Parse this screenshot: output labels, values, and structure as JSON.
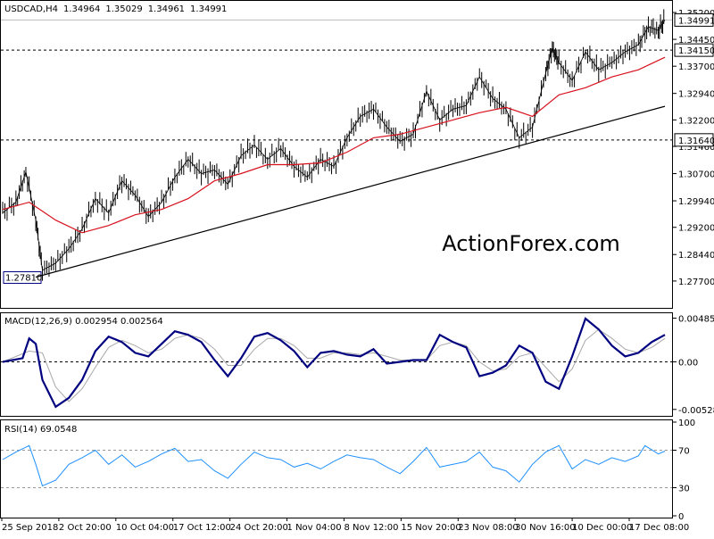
{
  "chart_data": {
    "type": "line",
    "symbol": "USDCAD",
    "timeframe": "H4",
    "ohlc_header": {
      "open": "1.34964",
      "high": "1.35029",
      "low": "1.34961",
      "close": "1.34991"
    },
    "watermark": "ActionForex.com",
    "x_labels": [
      "25 Sep 2018",
      "2 Oct 20:00",
      "10 Oct 04:00",
      "17 Oct 12:00",
      "24 Oct 20:00",
      "1 Nov 04:00",
      "8 Nov 12:00",
      "15 Nov 20:00",
      "23 Nov 08:00",
      "30 Nov 16:00",
      "10 Dec 00:00",
      "17 Dec 08:00"
    ],
    "price_panel": {
      "ylim": [
        1.27,
        1.352
      ],
      "y_ticks": [
        "1.35200",
        "1.34450",
        "1.33700",
        "1.32940",
        "1.32200",
        "1.31460",
        "1.30700",
        "1.29940",
        "1.29200",
        "1.28440",
        "1.27700"
      ],
      "tick_values": [
        1.352,
        1.3445,
        1.337,
        1.3294,
        1.322,
        1.3146,
        1.307,
        1.2994,
        1.292,
        1.2844,
        1.277
      ],
      "current_price": {
        "label": "1.34991",
        "value": 1.34991
      },
      "levels": [
        {
          "label": "1.34150",
          "value": 1.3415
        },
        {
          "label": "1.31640",
          "value": 1.3164
        }
      ],
      "low_marker": {
        "label": "1.27810",
        "value": 1.2781
      },
      "trendline": {
        "x": [
          0.05,
          1.0
        ],
        "y": [
          1.2781,
          1.3258
        ]
      },
      "price_series": [
        {
          "x": 0.0,
          "y": 1.296
        },
        {
          "x": 0.02,
          "y": 1.299
        },
        {
          "x": 0.035,
          "y": 1.3075
        },
        {
          "x": 0.05,
          "y": 1.294
        },
        {
          "x": 0.06,
          "y": 1.28
        },
        {
          "x": 0.08,
          "y": 1.282
        },
        {
          "x": 0.1,
          "y": 1.286
        },
        {
          "x": 0.12,
          "y": 1.2915
        },
        {
          "x": 0.14,
          "y": 1.3
        },
        {
          "x": 0.16,
          "y": 1.296
        },
        {
          "x": 0.18,
          "y": 1.305
        },
        {
          "x": 0.2,
          "y": 1.301
        },
        {
          "x": 0.22,
          "y": 1.295
        },
        {
          "x": 0.24,
          "y": 1.299
        },
        {
          "x": 0.26,
          "y": 1.306
        },
        {
          "x": 0.28,
          "y": 1.311
        },
        {
          "x": 0.3,
          "y": 1.307
        },
        {
          "x": 0.32,
          "y": 1.308
        },
        {
          "x": 0.34,
          "y": 1.304
        },
        {
          "x": 0.36,
          "y": 1.312
        },
        {
          "x": 0.38,
          "y": 1.315
        },
        {
          "x": 0.4,
          "y": 1.311
        },
        {
          "x": 0.42,
          "y": 1.314
        },
        {
          "x": 0.44,
          "y": 1.309
        },
        {
          "x": 0.46,
          "y": 1.306
        },
        {
          "x": 0.48,
          "y": 1.311
        },
        {
          "x": 0.5,
          "y": 1.309
        },
        {
          "x": 0.52,
          "y": 1.317
        },
        {
          "x": 0.54,
          "y": 1.323
        },
        {
          "x": 0.56,
          "y": 1.325
        },
        {
          "x": 0.58,
          "y": 1.32
        },
        {
          "x": 0.6,
          "y": 1.316
        },
        {
          "x": 0.62,
          "y": 1.318
        },
        {
          "x": 0.64,
          "y": 1.33
        },
        {
          "x": 0.66,
          "y": 1.322
        },
        {
          "x": 0.68,
          "y": 1.325
        },
        {
          "x": 0.7,
          "y": 1.326
        },
        {
          "x": 0.72,
          "y": 1.334
        },
        {
          "x": 0.74,
          "y": 1.328
        },
        {
          "x": 0.76,
          "y": 1.325
        },
        {
          "x": 0.78,
          "y": 1.317
        },
        {
          "x": 0.8,
          "y": 1.32
        },
        {
          "x": 0.82,
          "y": 1.335
        },
        {
          "x": 0.83,
          "y": 1.342
        },
        {
          "x": 0.84,
          "y": 1.338
        },
        {
          "x": 0.86,
          "y": 1.333
        },
        {
          "x": 0.88,
          "y": 1.341
        },
        {
          "x": 0.9,
          "y": 1.336
        },
        {
          "x": 0.92,
          "y": 1.338
        },
        {
          "x": 0.94,
          "y": 1.341
        },
        {
          "x": 0.96,
          "y": 1.343
        },
        {
          "x": 0.975,
          "y": 1.348
        },
        {
          "x": 0.99,
          "y": 1.347
        },
        {
          "x": 1.0,
          "y": 1.34991
        }
      ],
      "ma_series": [
        {
          "x": 0.0,
          "y": 1.297
        },
        {
          "x": 0.04,
          "y": 1.299
        },
        {
          "x": 0.08,
          "y": 1.294
        },
        {
          "x": 0.12,
          "y": 1.2905
        },
        {
          "x": 0.16,
          "y": 1.2925
        },
        {
          "x": 0.2,
          "y": 1.2955
        },
        {
          "x": 0.24,
          "y": 1.297
        },
        {
          "x": 0.28,
          "y": 1.3
        },
        {
          "x": 0.32,
          "y": 1.305
        },
        {
          "x": 0.36,
          "y": 1.307
        },
        {
          "x": 0.4,
          "y": 1.3095
        },
        {
          "x": 0.44,
          "y": 1.3095
        },
        {
          "x": 0.48,
          "y": 1.31
        },
        {
          "x": 0.52,
          "y": 1.313
        },
        {
          "x": 0.56,
          "y": 1.317
        },
        {
          "x": 0.6,
          "y": 1.318
        },
        {
          "x": 0.64,
          "y": 1.32
        },
        {
          "x": 0.68,
          "y": 1.322
        },
        {
          "x": 0.72,
          "y": 1.324
        },
        {
          "x": 0.76,
          "y": 1.3255
        },
        {
          "x": 0.8,
          "y": 1.323
        },
        {
          "x": 0.84,
          "y": 1.329
        },
        {
          "x": 0.88,
          "y": 1.331
        },
        {
          "x": 0.92,
          "y": 1.334
        },
        {
          "x": 0.96,
          "y": 1.336
        },
        {
          "x": 1.0,
          "y": 1.3395
        }
      ]
    },
    "macd_panel": {
      "title": "MACD(12,26,9) 0.002954 0.002564",
      "ylim": [
        -0.0058,
        0.0052
      ],
      "y_ticks": [
        "0.004853",
        "0.00",
        "-0.005284"
      ],
      "tick_values": [
        0.004853,
        0.0,
        -0.005284
      ],
      "macd_series": [
        {
          "x": 0.0,
          "y": 0.0
        },
        {
          "x": 0.03,
          "y": 0.0004
        },
        {
          "x": 0.04,
          "y": 0.0026
        },
        {
          "x": 0.05,
          "y": 0.002
        },
        {
          "x": 0.06,
          "y": -0.002
        },
        {
          "x": 0.08,
          "y": -0.005
        },
        {
          "x": 0.1,
          "y": -0.004
        },
        {
          "x": 0.12,
          "y": -0.002
        },
        {
          "x": 0.14,
          "y": 0.0012
        },
        {
          "x": 0.16,
          "y": 0.0028
        },
        {
          "x": 0.18,
          "y": 0.0022
        },
        {
          "x": 0.2,
          "y": 0.001
        },
        {
          "x": 0.22,
          "y": 0.0006
        },
        {
          "x": 0.24,
          "y": 0.002
        },
        {
          "x": 0.26,
          "y": 0.0034
        },
        {
          "x": 0.28,
          "y": 0.003
        },
        {
          "x": 0.3,
          "y": 0.0022
        },
        {
          "x": 0.32,
          "y": 0.0002
        },
        {
          "x": 0.34,
          "y": -0.0016
        },
        {
          "x": 0.36,
          "y": 0.0004
        },
        {
          "x": 0.38,
          "y": 0.0028
        },
        {
          "x": 0.4,
          "y": 0.0032
        },
        {
          "x": 0.42,
          "y": 0.0024
        },
        {
          "x": 0.44,
          "y": 0.0012
        },
        {
          "x": 0.46,
          "y": -0.0006
        },
        {
          "x": 0.48,
          "y": 0.001
        },
        {
          "x": 0.5,
          "y": 0.0012
        },
        {
          "x": 0.52,
          "y": 0.0008
        },
        {
          "x": 0.54,
          "y": 0.0006
        },
        {
          "x": 0.56,
          "y": 0.0014
        },
        {
          "x": 0.58,
          "y": -0.0002
        },
        {
          "x": 0.6,
          "y": 0.0
        },
        {
          "x": 0.62,
          "y": 0.0002
        },
        {
          "x": 0.64,
          "y": 0.0002
        },
        {
          "x": 0.66,
          "y": 0.003
        },
        {
          "x": 0.68,
          "y": 0.0022
        },
        {
          "x": 0.7,
          "y": 0.0016
        },
        {
          "x": 0.72,
          "y": -0.0016
        },
        {
          "x": 0.74,
          "y": -0.0012
        },
        {
          "x": 0.76,
          "y": -0.0004
        },
        {
          "x": 0.78,
          "y": 0.0018
        },
        {
          "x": 0.8,
          "y": 0.001
        },
        {
          "x": 0.82,
          "y": -0.0022
        },
        {
          "x": 0.84,
          "y": -0.003
        },
        {
          "x": 0.86,
          "y": 0.0006
        },
        {
          "x": 0.88,
          "y": 0.0048
        },
        {
          "x": 0.9,
          "y": 0.0036
        },
        {
          "x": 0.92,
          "y": 0.0018
        },
        {
          "x": 0.94,
          "y": 0.0006
        },
        {
          "x": 0.96,
          "y": 0.001
        },
        {
          "x": 0.98,
          "y": 0.0022
        },
        {
          "x": 1.0,
          "y": 0.003
        }
      ],
      "signal_series": [
        {
          "x": 0.0,
          "y": 0.0
        },
        {
          "x": 0.04,
          "y": 0.0012
        },
        {
          "x": 0.06,
          "y": 0.001
        },
        {
          "x": 0.08,
          "y": -0.0028
        },
        {
          "x": 0.1,
          "y": -0.0044
        },
        {
          "x": 0.12,
          "y": -0.003
        },
        {
          "x": 0.14,
          "y": -0.0006
        },
        {
          "x": 0.16,
          "y": 0.0016
        },
        {
          "x": 0.18,
          "y": 0.0024
        },
        {
          "x": 0.2,
          "y": 0.0018
        },
        {
          "x": 0.22,
          "y": 0.001
        },
        {
          "x": 0.24,
          "y": 0.0014
        },
        {
          "x": 0.26,
          "y": 0.0026
        },
        {
          "x": 0.28,
          "y": 0.003
        },
        {
          "x": 0.3,
          "y": 0.0026
        },
        {
          "x": 0.32,
          "y": 0.0014
        },
        {
          "x": 0.34,
          "y": -0.0004
        },
        {
          "x": 0.36,
          "y": -0.0004
        },
        {
          "x": 0.38,
          "y": 0.0014
        },
        {
          "x": 0.4,
          "y": 0.0026
        },
        {
          "x": 0.42,
          "y": 0.0026
        },
        {
          "x": 0.44,
          "y": 0.0018
        },
        {
          "x": 0.46,
          "y": 0.0004
        },
        {
          "x": 0.48,
          "y": 0.0004
        },
        {
          "x": 0.5,
          "y": 0.001
        },
        {
          "x": 0.52,
          "y": 0.001
        },
        {
          "x": 0.54,
          "y": 0.0008
        },
        {
          "x": 0.56,
          "y": 0.001
        },
        {
          "x": 0.58,
          "y": 0.0006
        },
        {
          "x": 0.6,
          "y": 0.0002
        },
        {
          "x": 0.62,
          "y": 0.0002
        },
        {
          "x": 0.64,
          "y": 0.0002
        },
        {
          "x": 0.66,
          "y": 0.0018
        },
        {
          "x": 0.68,
          "y": 0.0022
        },
        {
          "x": 0.7,
          "y": 0.0018
        },
        {
          "x": 0.72,
          "y": 0.0
        },
        {
          "x": 0.74,
          "y": -0.001
        },
        {
          "x": 0.76,
          "y": -0.0008
        },
        {
          "x": 0.78,
          "y": 0.0006
        },
        {
          "x": 0.8,
          "y": 0.001
        },
        {
          "x": 0.82,
          "y": -0.0006
        },
        {
          "x": 0.84,
          "y": -0.0022
        },
        {
          "x": 0.86,
          "y": -0.0008
        },
        {
          "x": 0.88,
          "y": 0.0024
        },
        {
          "x": 0.9,
          "y": 0.0036
        },
        {
          "x": 0.92,
          "y": 0.0026
        },
        {
          "x": 0.94,
          "y": 0.0014
        },
        {
          "x": 0.96,
          "y": 0.001
        },
        {
          "x": 0.98,
          "y": 0.0016
        },
        {
          "x": 1.0,
          "y": 0.0026
        }
      ]
    },
    "rsi_panel": {
      "title": "RSI(14) 69.0548",
      "ylim": [
        0,
        100
      ],
      "y_ticks": [
        "100",
        "70",
        "30",
        "0"
      ],
      "tick_values": [
        100,
        70,
        30,
        0
      ],
      "rsi_series": [
        {
          "x": 0.0,
          "y": 60
        },
        {
          "x": 0.02,
          "y": 68
        },
        {
          "x": 0.04,
          "y": 75
        },
        {
          "x": 0.05,
          "y": 55
        },
        {
          "x": 0.06,
          "y": 32
        },
        {
          "x": 0.08,
          "y": 38
        },
        {
          "x": 0.1,
          "y": 55
        },
        {
          "x": 0.12,
          "y": 62
        },
        {
          "x": 0.14,
          "y": 70
        },
        {
          "x": 0.16,
          "y": 55
        },
        {
          "x": 0.18,
          "y": 65
        },
        {
          "x": 0.2,
          "y": 52
        },
        {
          "x": 0.22,
          "y": 58
        },
        {
          "x": 0.24,
          "y": 66
        },
        {
          "x": 0.26,
          "y": 72
        },
        {
          "x": 0.28,
          "y": 58
        },
        {
          "x": 0.3,
          "y": 60
        },
        {
          "x": 0.32,
          "y": 48
        },
        {
          "x": 0.34,
          "y": 40
        },
        {
          "x": 0.36,
          "y": 55
        },
        {
          "x": 0.38,
          "y": 68
        },
        {
          "x": 0.4,
          "y": 62
        },
        {
          "x": 0.42,
          "y": 60
        },
        {
          "x": 0.44,
          "y": 52
        },
        {
          "x": 0.46,
          "y": 56
        },
        {
          "x": 0.48,
          "y": 50
        },
        {
          "x": 0.5,
          "y": 58
        },
        {
          "x": 0.52,
          "y": 65
        },
        {
          "x": 0.54,
          "y": 62
        },
        {
          "x": 0.56,
          "y": 60
        },
        {
          "x": 0.58,
          "y": 52
        },
        {
          "x": 0.6,
          "y": 45
        },
        {
          "x": 0.62,
          "y": 58
        },
        {
          "x": 0.64,
          "y": 73
        },
        {
          "x": 0.66,
          "y": 52
        },
        {
          "x": 0.68,
          "y": 55
        },
        {
          "x": 0.7,
          "y": 58
        },
        {
          "x": 0.72,
          "y": 68
        },
        {
          "x": 0.74,
          "y": 52
        },
        {
          "x": 0.76,
          "y": 48
        },
        {
          "x": 0.78,
          "y": 36
        },
        {
          "x": 0.8,
          "y": 55
        },
        {
          "x": 0.82,
          "y": 68
        },
        {
          "x": 0.84,
          "y": 75
        },
        {
          "x": 0.86,
          "y": 50
        },
        {
          "x": 0.88,
          "y": 60
        },
        {
          "x": 0.9,
          "y": 55
        },
        {
          "x": 0.92,
          "y": 62
        },
        {
          "x": 0.94,
          "y": 58
        },
        {
          "x": 0.96,
          "y": 64
        },
        {
          "x": 0.97,
          "y": 75
        },
        {
          "x": 0.99,
          "y": 66
        },
        {
          "x": 1.0,
          "y": 69.05
        }
      ]
    },
    "colors": {
      "price": "#000000",
      "ma": "#d8101d",
      "trendline": "#000000",
      "macd": "#000080",
      "signal": "#a8a8a8",
      "rsi": "#1e90ff",
      "watermark": "#c8c8c8",
      "level_dash": "#000000"
    }
  }
}
